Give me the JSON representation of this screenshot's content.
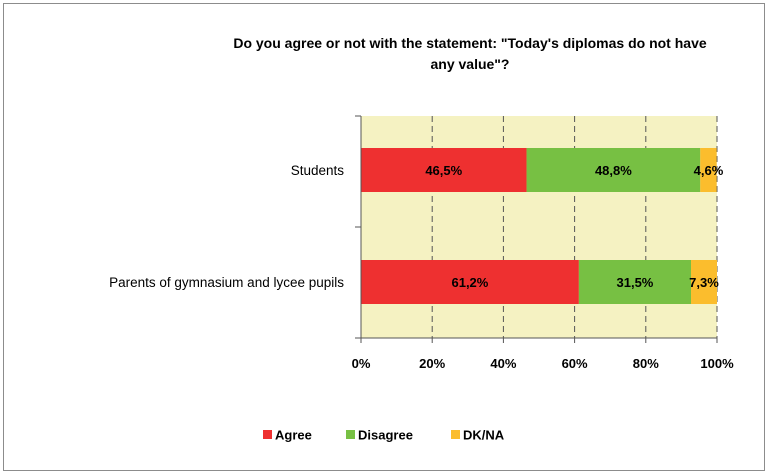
{
  "chart_data": {
    "type": "bar",
    "orientation": "horizontal",
    "stacked": true,
    "title_lines": [
      "Do you agree or not with the statement: \"Today's diplomas do not have",
      "any value\"?"
    ],
    "categories": [
      "Students",
      "Parents of gymnasium and lycee pupils"
    ],
    "series": [
      {
        "name": "Agree",
        "color": "#ee3030",
        "values": [
          46.5,
          61.2
        ],
        "labels": [
          "46,5%",
          "61,2%"
        ]
      },
      {
        "name": "Disagree",
        "color": "#77c043",
        "values": [
          48.8,
          31.5
        ],
        "labels": [
          "48,8%",
          "31,5%"
        ]
      },
      {
        "name": "DK/NA",
        "color": "#fbbd2d",
        "values": [
          4.6,
          7.3
        ],
        "labels": [
          "4,6%",
          "7,3%"
        ]
      }
    ],
    "xlim": [
      0,
      100
    ],
    "x_ticks": [
      "0%",
      "20%",
      "40%",
      "60%",
      "80%",
      "100%"
    ],
    "grid": "vertical dashed",
    "plot_background": "#f5f2c2",
    "legend_position": "bottom"
  }
}
